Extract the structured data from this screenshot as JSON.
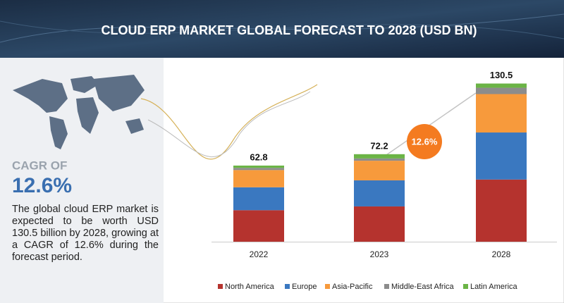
{
  "chart_data": {
    "type": "stacked-bar",
    "title": "CLOUD ERP MARKET GLOBAL FORECAST TO 2028 (USD BN)",
    "cagr_label": "CAGR OF",
    "cagr": "12.6%",
    "description": "The global cloud ERP market is expected to be worth USD 130.5 billion by 2028, growing at a CAGR of 12.6% during the forecast period.",
    "categories": [
      "2022",
      "2023",
      "2028"
    ],
    "totals": [
      62.8,
      72.2,
      130.5
    ],
    "series": [
      {
        "name": "North America",
        "color": "#b5332e",
        "values": [
          26.0,
          29.1,
          51.3
        ]
      },
      {
        "name": "Europe",
        "color": "#3a78c0",
        "values": [
          18.9,
          21.5,
          38.8
        ]
      },
      {
        "name": "Asia-Pacific",
        "color": "#f79a3c",
        "values": [
          14.2,
          16.2,
          31.7
        ]
      },
      {
        "name": "Middle-East Africa",
        "color": "#8c8c8c",
        "values": [
          1.8,
          1.9,
          5.2
        ]
      },
      {
        "name": "Latin America",
        "color": "#6bb446",
        "values": [
          1.9,
          3.5,
          3.5
        ]
      }
    ]
  }
}
